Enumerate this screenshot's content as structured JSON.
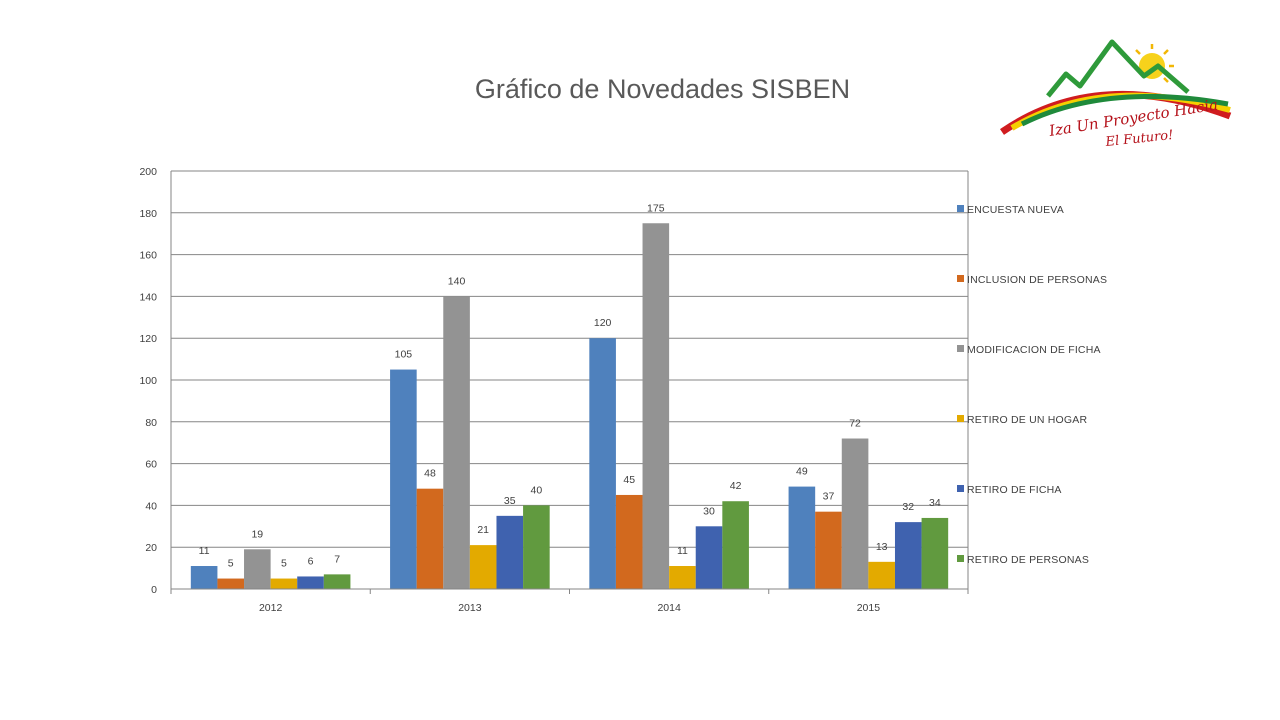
{
  "chart_data": {
    "type": "bar",
    "title": "Gráfico de Novedades SISBEN",
    "categories": [
      "2012",
      "2013",
      "2014",
      "2015"
    ],
    "ylim": [
      0,
      200
    ],
    "yticks": [
      0,
      20,
      40,
      60,
      80,
      100,
      120,
      140,
      160,
      180,
      200
    ],
    "grid": true,
    "legend_position": "right",
    "series": [
      {
        "name": "ENCUESTA NUEVA",
        "color": "#4F81BD",
        "values": [
          11,
          105,
          120,
          49
        ]
      },
      {
        "name": "INCLUSION DE PERSONAS",
        "color": "#D2691E",
        "values": [
          5,
          48,
          45,
          37
        ]
      },
      {
        "name": "MODIFICACION DE FICHA",
        "color": "#939393",
        "values": [
          19,
          140,
          175,
          72
        ]
      },
      {
        "name": "RETIRO DE UN HOGAR",
        "color": "#E3AA00",
        "values": [
          5,
          21,
          11,
          13
        ]
      },
      {
        "name": "RETIRO DE FICHA",
        "color": "#3F62AF",
        "values": [
          6,
          35,
          30,
          32
        ]
      },
      {
        "name": "RETIRO DE PERSONAS",
        "color": "#619A3F",
        "values": [
          7,
          40,
          42,
          34
        ]
      }
    ]
  },
  "logo": {
    "line1": "Iza Un Proyecto Hacia",
    "line2": "El Futuro!"
  }
}
